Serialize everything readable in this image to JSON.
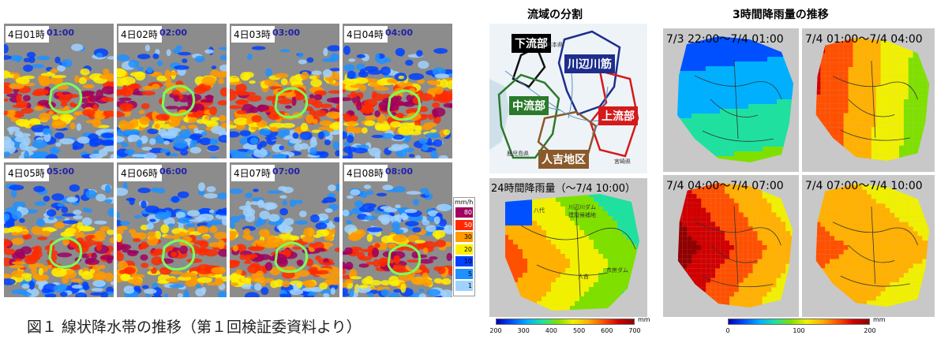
{
  "figure1": {
    "caption": "図１ 線状降水帯の推移（第１回検証委資料より）",
    "tiles": [
      {
        "label": "4日01時",
        "time": "01:00"
      },
      {
        "label": "4日02時",
        "time": "02:00"
      },
      {
        "label": "4日03時",
        "time": "03:00"
      },
      {
        "label": "4日04時",
        "time": "04:00"
      },
      {
        "label": "4日05時",
        "time": "05:00"
      },
      {
        "label": "4日06時",
        "time": "06:00"
      },
      {
        "label": "4日07時",
        "time": "07:00"
      },
      {
        "label": "4日08時",
        "time": "08:00"
      }
    ],
    "legend": {
      "unit": "mm/h",
      "levels": [
        "80",
        "50",
        "30",
        "20",
        "10",
        "5",
        "1"
      ],
      "colors": [
        "#a0005e",
        "#ff2a00",
        "#ff9a00",
        "#fff000",
        "#0041ff",
        "#2090ff",
        "#a0d2ff"
      ]
    }
  },
  "right": {
    "basin_title": "流域の分割",
    "trend_title": "3時間降雨量の推移",
    "regions": {
      "lower": "下流部",
      "kawabe": "川辺川筋",
      "middle": "中流部",
      "upper": "上流部",
      "hitoyoshi": "人吉地区"
    },
    "prefectures": {
      "kumamoto": "熊本県",
      "kagoshima": "鹿児島県",
      "miyazaki": "宮崎県"
    },
    "rain24_title": "24時間降雨量（～7/4 10:00）",
    "rain24_labels": {
      "yatsushiro": "八代",
      "dam": "川辺川ダム\n建設候補地",
      "hitoyoshi": "人吉",
      "ichifusa": "市房ダム"
    },
    "panels": [
      {
        "title": "7/3 22:00～7/4 01:00"
      },
      {
        "title": "7/4 01:00～7/4 04:00"
      },
      {
        "title": "7/4 04:00～7/4 07:00"
      },
      {
        "title": "7/4 07:00～7/4 10:00"
      }
    ],
    "colorbar24": {
      "unit": "mm",
      "ticks": [
        "200",
        "300",
        "400",
        "500",
        "600",
        "700"
      ]
    },
    "colorbar3h": {
      "unit": "mm",
      "ticks": [
        "0",
        "100",
        "200"
      ]
    }
  }
}
